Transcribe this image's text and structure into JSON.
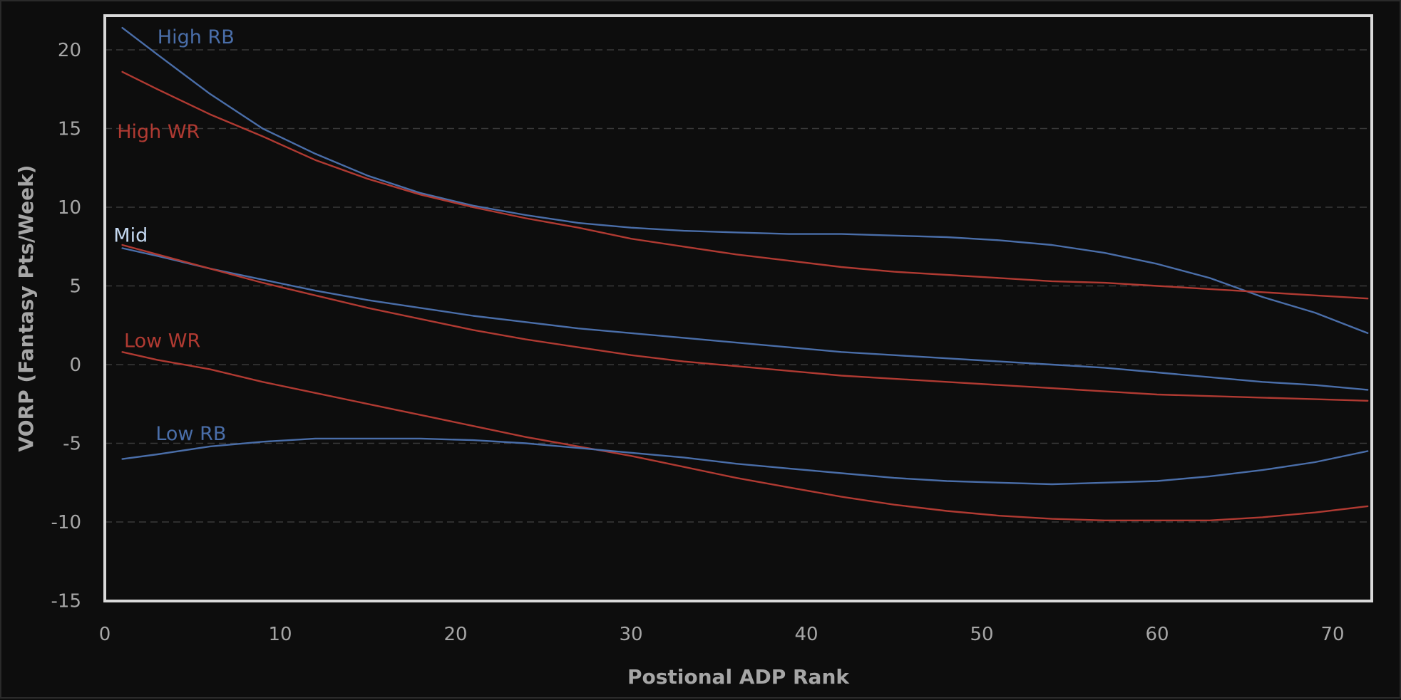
{
  "chart_data": {
    "type": "line",
    "title": "",
    "xlabel": "Postional ADP Rank",
    "ylabel": "VORP (Fantasy Pts/Week)",
    "xlim": [
      0,
      72
    ],
    "ylim": [
      -15,
      22
    ],
    "x_ticks": [
      0,
      10,
      20,
      30,
      40,
      50,
      60,
      70
    ],
    "y_ticks": [
      -15,
      -10,
      -5,
      0,
      5,
      10,
      15,
      20
    ],
    "grid": "horizontal dashed",
    "legend": "none (inline labels)",
    "colors": {
      "background": "#0d0d0d",
      "plot_border": "#d9d9d9",
      "gridline": "#3a3a3a",
      "rb": "#4a6ea9",
      "wr": "#b03a32",
      "mid_label": "#c5d9f1"
    },
    "series": [
      {
        "name": "High RB",
        "color": "#4a6ea9",
        "x": [
          1,
          3,
          6,
          9,
          12,
          15,
          18,
          21,
          24,
          27,
          30,
          33,
          36,
          39,
          42,
          45,
          48,
          51,
          54,
          57,
          60,
          63,
          66,
          69,
          72
        ],
        "y": [
          21.4,
          19.7,
          17.2,
          15.0,
          13.4,
          12.0,
          10.9,
          10.1,
          9.5,
          9.0,
          8.7,
          8.5,
          8.4,
          8.3,
          8.3,
          8.2,
          8.1,
          7.9,
          7.6,
          7.1,
          6.4,
          5.5,
          4.3,
          3.3,
          2.0
        ]
      },
      {
        "name": "High WR",
        "color": "#b03a32",
        "x": [
          1,
          3,
          6,
          9,
          12,
          15,
          18,
          21,
          24,
          27,
          30,
          33,
          36,
          39,
          42,
          45,
          48,
          51,
          54,
          57,
          60,
          63,
          66,
          69,
          72
        ],
        "y": [
          18.6,
          17.5,
          15.9,
          14.5,
          13.0,
          11.8,
          10.8,
          10.0,
          9.3,
          8.7,
          8.0,
          7.5,
          7.0,
          6.6,
          6.2,
          5.9,
          5.7,
          5.5,
          5.3,
          5.2,
          5.0,
          4.8,
          4.6,
          4.4,
          4.2
        ]
      },
      {
        "name": "Mid RB",
        "color": "#4a6ea9",
        "x": [
          1,
          3,
          6,
          9,
          12,
          15,
          18,
          21,
          24,
          27,
          30,
          33,
          36,
          39,
          42,
          45,
          48,
          51,
          54,
          57,
          60,
          63,
          66,
          69,
          72
        ],
        "y": [
          7.4,
          6.9,
          6.1,
          5.4,
          4.7,
          4.1,
          3.6,
          3.1,
          2.7,
          2.3,
          2.0,
          1.7,
          1.4,
          1.1,
          0.8,
          0.6,
          0.4,
          0.2,
          0.0,
          -0.2,
          -0.5,
          -0.8,
          -1.1,
          -1.3,
          -1.6
        ]
      },
      {
        "name": "Mid WR",
        "color": "#b03a32",
        "x": [
          1,
          3,
          6,
          9,
          12,
          15,
          18,
          21,
          24,
          27,
          30,
          33,
          36,
          39,
          42,
          45,
          48,
          51,
          54,
          57,
          60,
          63,
          66,
          69,
          72
        ],
        "y": [
          7.6,
          7.0,
          6.1,
          5.2,
          4.4,
          3.6,
          2.9,
          2.2,
          1.6,
          1.1,
          0.6,
          0.2,
          -0.1,
          -0.4,
          -0.7,
          -0.9,
          -1.1,
          -1.3,
          -1.5,
          -1.7,
          -1.9,
          -2.0,
          -2.1,
          -2.2,
          -2.3
        ]
      },
      {
        "name": "Low WR",
        "color": "#b03a32",
        "x": [
          1,
          3,
          6,
          9,
          12,
          15,
          18,
          21,
          24,
          27,
          30,
          33,
          36,
          39,
          42,
          45,
          48,
          51,
          54,
          57,
          60,
          63,
          66,
          69,
          72
        ],
        "y": [
          0.8,
          0.3,
          -0.3,
          -1.1,
          -1.8,
          -2.5,
          -3.2,
          -3.9,
          -4.6,
          -5.2,
          -5.8,
          -6.5,
          -7.2,
          -7.8,
          -8.4,
          -8.9,
          -9.3,
          -9.6,
          -9.8,
          -9.9,
          -9.9,
          -9.9,
          -9.7,
          -9.4,
          -9.0
        ]
      },
      {
        "name": "Low RB",
        "color": "#4a6ea9",
        "x": [
          1,
          3,
          6,
          9,
          12,
          15,
          18,
          21,
          24,
          27,
          30,
          33,
          36,
          39,
          42,
          45,
          48,
          51,
          54,
          57,
          60,
          63,
          66,
          69,
          72
        ],
        "y": [
          -6.0,
          -5.7,
          -5.2,
          -4.9,
          -4.7,
          -4.7,
          -4.7,
          -4.8,
          -5.0,
          -5.3,
          -5.6,
          -5.9,
          -6.3,
          -6.6,
          -6.9,
          -7.2,
          -7.4,
          -7.5,
          -7.6,
          -7.5,
          -7.4,
          -7.1,
          -6.7,
          -6.2,
          -5.5
        ]
      }
    ],
    "annotations": [
      {
        "text": "High RB",
        "x": 3,
        "y": 20.4,
        "color": "#4a6ea9"
      },
      {
        "text": "High WR",
        "x": 0.7,
        "y": 14.4,
        "color": "#b03a32"
      },
      {
        "text": "Mid",
        "x": 0.5,
        "y": 7.8,
        "color": "#c5d9f1"
      },
      {
        "text": "Low WR",
        "x": 1.1,
        "y": 1.1,
        "color": "#b03a32"
      },
      {
        "text": "Low RB",
        "x": 2.9,
        "y": -4.8,
        "color": "#4a6ea9"
      }
    ]
  }
}
